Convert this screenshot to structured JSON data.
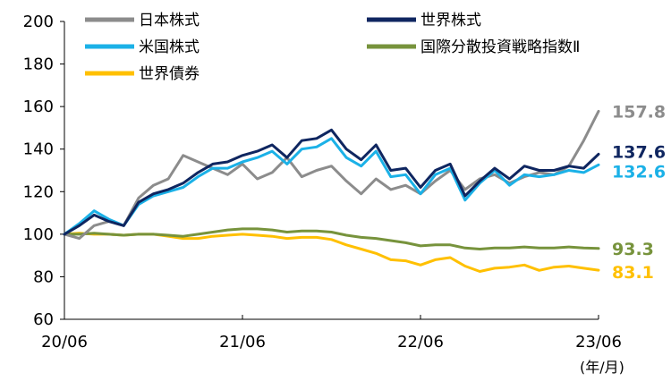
{
  "chart_data": {
    "type": "line",
    "x_unit_label": "(年/月)",
    "x_ticks": [
      "20/06",
      "21/06",
      "22/06",
      "23/06"
    ],
    "ylim": [
      60,
      200
    ],
    "y_ticks": [
      "60",
      "80",
      "100",
      "120",
      "140",
      "160",
      "180",
      "200"
    ],
    "grid": false,
    "legend_placement": "top",
    "series": [
      {
        "name": "日本株式",
        "color": "#8c8c8c",
        "end_label": "157.8",
        "points": [
          [
            "20/06",
            100
          ],
          [
            "20/07",
            98
          ],
          [
            "20/08",
            104
          ],
          [
            "20/09",
            106
          ],
          [
            "20/10",
            104
          ],
          [
            "20/11",
            117
          ],
          [
            "20/12",
            123
          ],
          [
            "21/01",
            126
          ],
          [
            "21/02",
            137
          ],
          [
            "21/03",
            134
          ],
          [
            "21/04",
            131
          ],
          [
            "21/05",
            128
          ],
          [
            "21/06",
            133
          ],
          [
            "21/07",
            126
          ],
          [
            "21/08",
            129
          ],
          [
            "21/09",
            136
          ],
          [
            "21/10",
            127
          ],
          [
            "21/11",
            130
          ],
          [
            "21/12",
            132
          ],
          [
            "22/01",
            125
          ],
          [
            "22/02",
            119
          ],
          [
            "22/03",
            126
          ],
          [
            "22/04",
            121
          ],
          [
            "22/05",
            123
          ],
          [
            "22/06",
            119
          ],
          [
            "22/07",
            125
          ],
          [
            "22/08",
            130
          ],
          [
            "22/09",
            121
          ],
          [
            "22/10",
            126
          ],
          [
            "22/11",
            128
          ],
          [
            "22/12",
            124
          ],
          [
            "23/01",
            127
          ],
          [
            "23/02",
            129
          ],
          [
            "23/03",
            128
          ],
          [
            "23/04",
            132
          ],
          [
            "23/05",
            144
          ],
          [
            "23/06",
            157.8
          ]
        ]
      },
      {
        "name": "世界株式",
        "color": "#0f2660",
        "end_label": "137.6",
        "points": [
          [
            "20/06",
            100
          ],
          [
            "20/07",
            104
          ],
          [
            "20/08",
            109
          ],
          [
            "20/09",
            106
          ],
          [
            "20/10",
            104
          ],
          [
            "20/11",
            115
          ],
          [
            "20/12",
            119
          ],
          [
            "21/01",
            121
          ],
          [
            "21/02",
            124
          ],
          [
            "21/03",
            129
          ],
          [
            "21/04",
            133
          ],
          [
            "21/05",
            134
          ],
          [
            "21/06",
            137
          ],
          [
            "21/07",
            139
          ],
          [
            "21/08",
            142
          ],
          [
            "21/09",
            136
          ],
          [
            "21/10",
            144
          ],
          [
            "21/11",
            145
          ],
          [
            "21/12",
            149
          ],
          [
            "22/01",
            140
          ],
          [
            "22/02",
            135
          ],
          [
            "22/03",
            142
          ],
          [
            "22/04",
            130
          ],
          [
            "22/05",
            131
          ],
          [
            "22/06",
            122
          ],
          [
            "22/07",
            130
          ],
          [
            "22/08",
            133
          ],
          [
            "22/09",
            118
          ],
          [
            "22/10",
            125
          ],
          [
            "22/11",
            131
          ],
          [
            "22/12",
            126
          ],
          [
            "23/01",
            132
          ],
          [
            "23/02",
            130
          ],
          [
            "23/03",
            130
          ],
          [
            "23/04",
            132
          ],
          [
            "23/05",
            131
          ],
          [
            "23/06",
            137.6
          ]
        ]
      },
      {
        "name": "米国株式",
        "color": "#1bb1e7",
        "end_label": "132.6",
        "points": [
          [
            "20/06",
            100
          ],
          [
            "20/07",
            105
          ],
          [
            "20/08",
            111
          ],
          [
            "20/09",
            107
          ],
          [
            "20/10",
            104
          ],
          [
            "20/11",
            114
          ],
          [
            "20/12",
            118
          ],
          [
            "21/01",
            120
          ],
          [
            "21/02",
            122
          ],
          [
            "21/03",
            127
          ],
          [
            "21/04",
            131
          ],
          [
            "21/05",
            131
          ],
          [
            "21/06",
            134
          ],
          [
            "21/07",
            136
          ],
          [
            "21/08",
            139
          ],
          [
            "21/09",
            133
          ],
          [
            "21/10",
            140
          ],
          [
            "21/11",
            141
          ],
          [
            "21/12",
            145
          ],
          [
            "22/01",
            136
          ],
          [
            "22/02",
            132
          ],
          [
            "22/03",
            139
          ],
          [
            "22/04",
            127
          ],
          [
            "22/05",
            128
          ],
          [
            "22/06",
            119
          ],
          [
            "22/07",
            128
          ],
          [
            "22/08",
            131
          ],
          [
            "22/09",
            116
          ],
          [
            "22/10",
            124
          ],
          [
            "22/11",
            130
          ],
          [
            "22/12",
            123
          ],
          [
            "23/01",
            128
          ],
          [
            "23/02",
            127
          ],
          [
            "23/03",
            128
          ],
          [
            "23/04",
            130
          ],
          [
            "23/05",
            129
          ],
          [
            "23/06",
            132.6
          ]
        ]
      },
      {
        "name": "国際分散投資戦略指数Ⅱ",
        "color": "#77933c",
        "end_label": "93.3",
        "points": [
          [
            "20/06",
            100
          ],
          [
            "20/07",
            100
          ],
          [
            "20/08",
            100.5
          ],
          [
            "20/09",
            100
          ],
          [
            "20/10",
            99.5
          ],
          [
            "20/11",
            100
          ],
          [
            "20/12",
            100
          ],
          [
            "21/01",
            99.5
          ],
          [
            "21/02",
            99
          ],
          [
            "21/03",
            100
          ],
          [
            "21/04",
            101
          ],
          [
            "21/05",
            102
          ],
          [
            "21/06",
            102.5
          ],
          [
            "21/07",
            102.5
          ],
          [
            "21/08",
            102
          ],
          [
            "21/09",
            101
          ],
          [
            "21/10",
            101.5
          ],
          [
            "21/11",
            101.5
          ],
          [
            "21/12",
            101
          ],
          [
            "22/01",
            99.5
          ],
          [
            "22/02",
            98.5
          ],
          [
            "22/03",
            98
          ],
          [
            "22/04",
            97
          ],
          [
            "22/05",
            96
          ],
          [
            "22/06",
            94.5
          ],
          [
            "22/07",
            95
          ],
          [
            "22/08",
            95
          ],
          [
            "22/09",
            93.5
          ],
          [
            "22/10",
            93
          ],
          [
            "22/11",
            93.5
          ],
          [
            "22/12",
            93.5
          ],
          [
            "23/01",
            94
          ],
          [
            "23/02",
            93.5
          ],
          [
            "23/03",
            93.5
          ],
          [
            "23/04",
            94
          ],
          [
            "23/05",
            93.5
          ],
          [
            "23/06",
            93.3
          ]
        ]
      },
      {
        "name": "世界債券",
        "color": "#ffc000",
        "end_label": "83.1",
        "points": [
          [
            "20/06",
            100
          ],
          [
            "20/07",
            100.5
          ],
          [
            "20/08",
            100
          ],
          [
            "20/09",
            100
          ],
          [
            "20/10",
            99.5
          ],
          [
            "20/11",
            100
          ],
          [
            "20/12",
            100
          ],
          [
            "21/01",
            99
          ],
          [
            "21/02",
            98
          ],
          [
            "21/03",
            98
          ],
          [
            "21/04",
            99
          ],
          [
            "21/05",
            99.5
          ],
          [
            "21/06",
            100
          ],
          [
            "21/07",
            99.5
          ],
          [
            "21/08",
            99
          ],
          [
            "21/09",
            98
          ],
          [
            "21/10",
            98.5
          ],
          [
            "21/11",
            98.5
          ],
          [
            "21/12",
            97.5
          ],
          [
            "22/01",
            95
          ],
          [
            "22/02",
            93
          ],
          [
            "22/03",
            91
          ],
          [
            "22/04",
            88
          ],
          [
            "22/05",
            87.5
          ],
          [
            "22/06",
            85.5
          ],
          [
            "22/07",
            88
          ],
          [
            "22/08",
            89
          ],
          [
            "22/09",
            85
          ],
          [
            "22/10",
            82.5
          ],
          [
            "22/11",
            84
          ],
          [
            "22/12",
            84.5
          ],
          [
            "23/01",
            85.5
          ],
          [
            "23/02",
            83
          ],
          [
            "23/03",
            84.5
          ],
          [
            "23/04",
            85
          ],
          [
            "23/05",
            84
          ],
          [
            "23/06",
            83.1
          ]
        ]
      }
    ]
  }
}
